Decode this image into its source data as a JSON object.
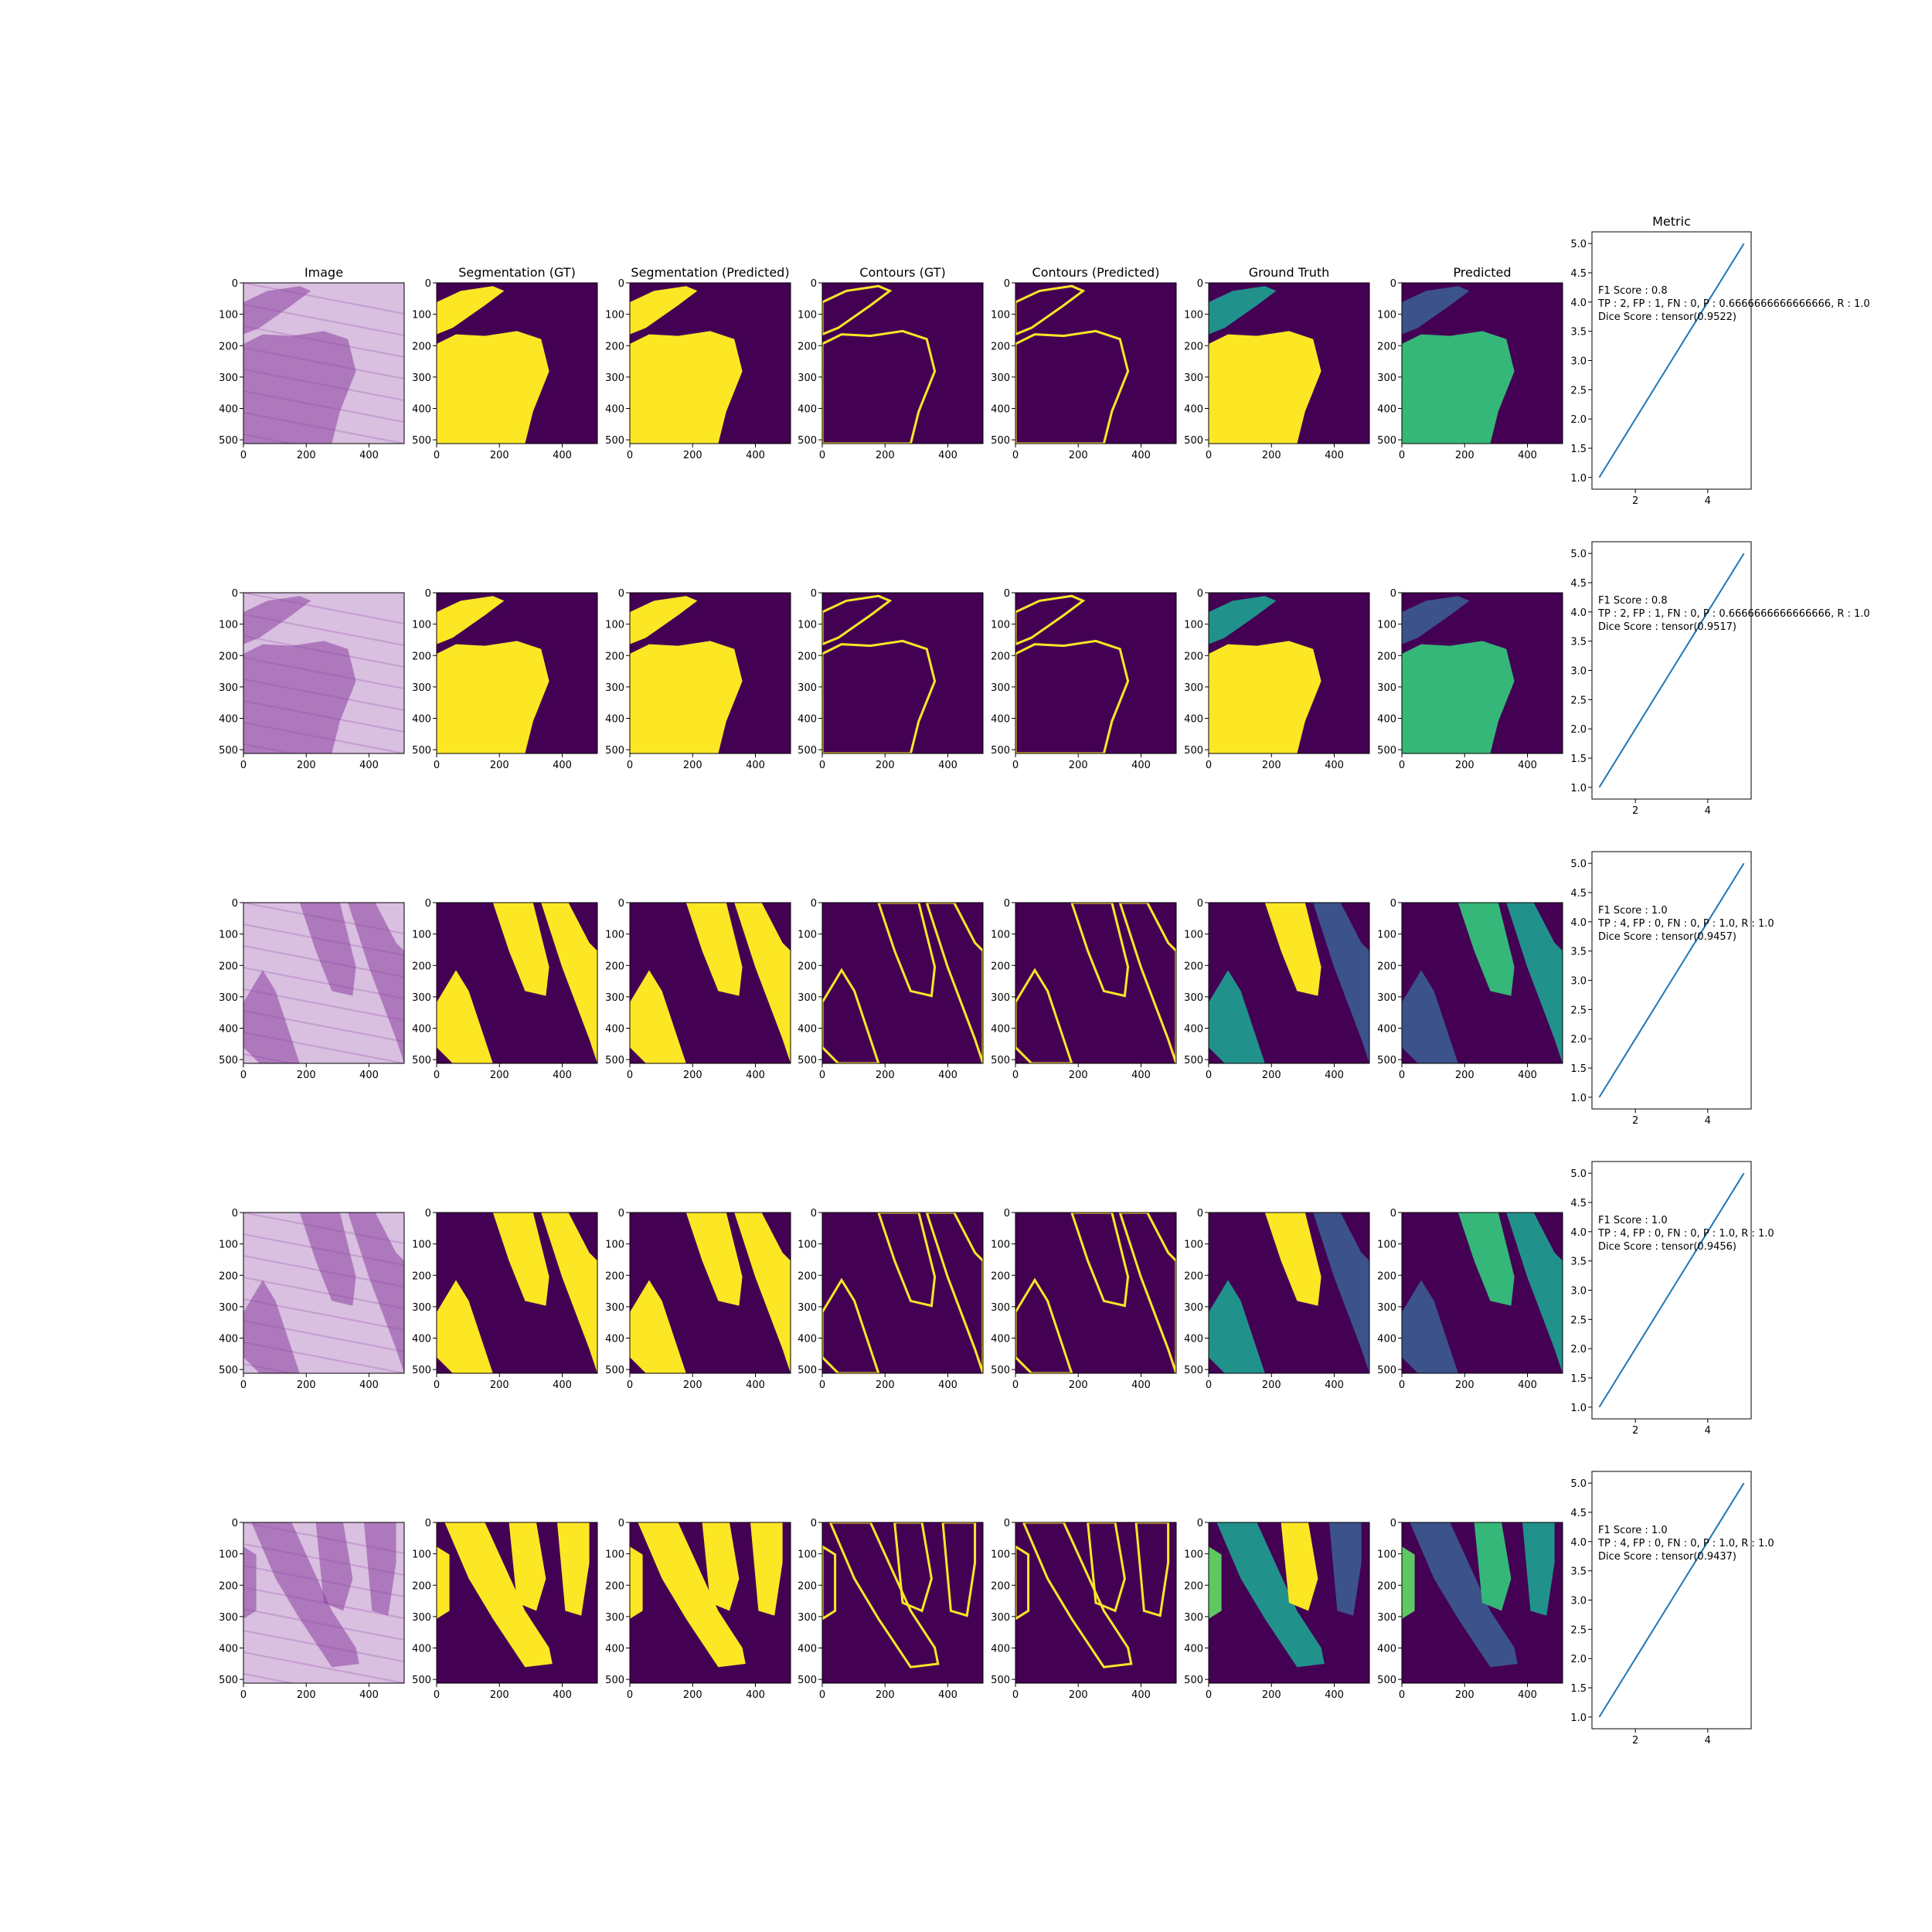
{
  "column_titles": [
    "Image",
    "Segmentation (GT)",
    "Segmentation (Predicted)",
    "Contours (GT)",
    "Contours (Predicted)",
    "Ground Truth",
    "Predicted",
    "Metric"
  ],
  "image_axes": {
    "ticks": [
      "0",
      "200",
      "400"
    ],
    "yticks": [
      "0",
      "100",
      "200",
      "300",
      "400",
      "500"
    ],
    "xlim": [
      0,
      512
    ],
    "ylim": [
      512,
      0
    ]
  },
  "colors": {
    "viridis_bg": "#440154",
    "viridis_yellow": "#fde725",
    "viridis_teal": "#21918c",
    "viridis_blue": "#3b528b",
    "viridis_green": "#35b779",
    "viridis_lightgreen": "#5ec962",
    "he_light": "#d9bfe0",
    "he_dark": "#8a3f9f",
    "line": "#1f77b4"
  },
  "chart_data": [
    {
      "type": "line",
      "title": "Metric",
      "x": [
        1,
        2,
        3,
        4,
        5
      ],
      "y": [
        1,
        2,
        3,
        4,
        5
      ],
      "xticks": [
        "2",
        "4"
      ],
      "yticks": [
        "1.0",
        "1.5",
        "2.0",
        "2.5",
        "3.0",
        "3.5",
        "4.0",
        "4.5",
        "5.0"
      ],
      "annotations": [
        "F1 Score : 0.8",
        "TP : 2, FP : 1, FN : 0, P : 0.6666666666666666, R : 1.0",
        "Dice Score : tensor(0.9522)"
      ]
    },
    {
      "type": "line",
      "title": "",
      "x": [
        1,
        2,
        3,
        4,
        5
      ],
      "y": [
        1,
        2,
        3,
        4,
        5
      ],
      "xticks": [
        "2",
        "4"
      ],
      "yticks": [
        "1.0",
        "1.5",
        "2.0",
        "2.5",
        "3.0",
        "3.5",
        "4.0",
        "4.5",
        "5.0"
      ],
      "annotations": [
        "F1 Score : 0.8",
        "TP : 2, FP : 1, FN : 0, P : 0.6666666666666666, R : 1.0",
        "Dice Score : tensor(0.9517)"
      ]
    },
    {
      "type": "line",
      "title": "",
      "x": [
        1,
        2,
        3,
        4,
        5
      ],
      "y": [
        1,
        2,
        3,
        4,
        5
      ],
      "xticks": [
        "2",
        "4"
      ],
      "yticks": [
        "1.0",
        "1.5",
        "2.0",
        "2.5",
        "3.0",
        "3.5",
        "4.0",
        "4.5",
        "5.0"
      ],
      "annotations": [
        "F1 Score : 1.0",
        "TP : 4, FP : 0, FN : 0, P : 1.0, R : 1.0",
        "Dice Score : tensor(0.9457)"
      ]
    },
    {
      "type": "line",
      "title": "",
      "x": [
        1,
        2,
        3,
        4,
        5
      ],
      "y": [
        1,
        2,
        3,
        4,
        5
      ],
      "xticks": [
        "2",
        "4"
      ],
      "yticks": [
        "1.0",
        "1.5",
        "2.0",
        "2.5",
        "3.0",
        "3.5",
        "4.0",
        "4.5",
        "5.0"
      ],
      "annotations": [
        "F1 Score : 1.0",
        "TP : 4, FP : 0, FN : 0, P : 1.0, R : 1.0",
        "Dice Score : tensor(0.9456)"
      ]
    },
    {
      "type": "line",
      "title": "",
      "x": [
        1,
        2,
        3,
        4,
        5
      ],
      "y": [
        1,
        2,
        3,
        4,
        5
      ],
      "xticks": [
        "2",
        "4"
      ],
      "yticks": [
        "1.0",
        "1.5",
        "2.0",
        "2.5",
        "3.0",
        "3.5",
        "4.0",
        "4.5",
        "5.0"
      ],
      "annotations": [
        "F1 Score : 1.0",
        "TP : 4, FP : 0, FN : 0, P : 1.0, R : 1.0",
        "Dice Score : tensor(0.9437)"
      ]
    }
  ]
}
